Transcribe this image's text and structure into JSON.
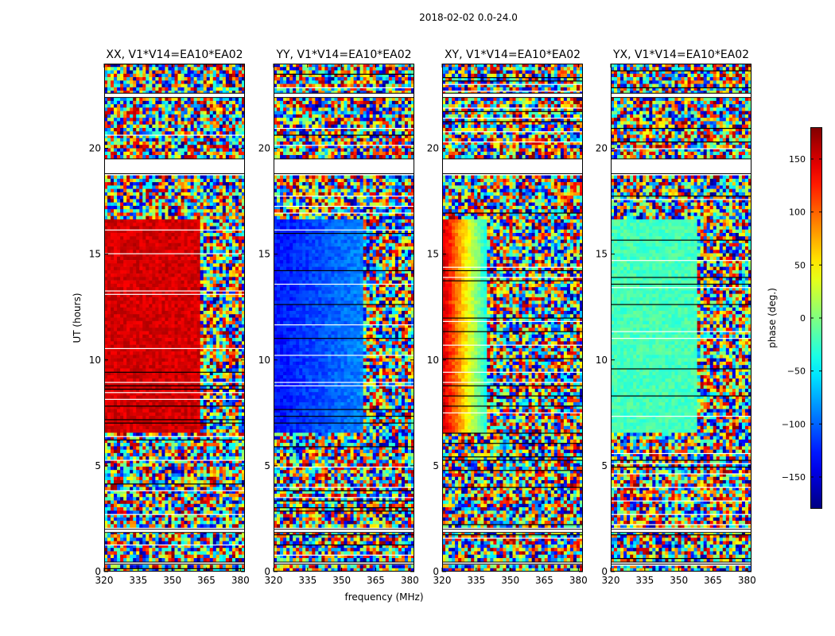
{
  "figure": {
    "suptitle": "2018-02-02 0.0-24.0",
    "xlabel": "frequency (MHz)",
    "ylabel": "UT (hours)"
  },
  "chart_data": {
    "type": "heatmap",
    "x_range": [
      320,
      382
    ],
    "y_range": [
      0,
      24
    ],
    "x_ticks": [
      320,
      335,
      350,
      365,
      380
    ],
    "x_tick_labels": [
      "320",
      "335",
      "350",
      "365",
      "380"
    ],
    "y_ticks": [
      0,
      5,
      10,
      15,
      20
    ],
    "y_tick_labels": [
      "0",
      "5",
      "10",
      "15",
      "20"
    ],
    "panels": [
      {
        "title": "XX, V1*V14=EA10*EA02",
        "pol": "XX",
        "coherent_phase_deg": 150,
        "coherent_until_mhz": 362
      },
      {
        "title": "YY, V1*V14=EA10*EA02",
        "pol": "YY",
        "coherent_phase_deg": -130,
        "coherent_until_mhz": 360
      },
      {
        "title": "XY, V1*V14=EA10*EA02",
        "pol": "XY",
        "coherent_phase_deg": 150,
        "coherent_until_mhz": 340
      },
      {
        "title": "YX, V1*V14=EA10*EA02",
        "pol": "YX",
        "coherent_phase_deg": -20,
        "coherent_until_mhz": 358
      }
    ],
    "flagged_ut_ranges": [
      [
        0.35,
        0.45
      ],
      [
        1.85,
        2.0
      ],
      [
        18.8,
        19.5
      ],
      [
        22.4,
        22.6
      ]
    ],
    "colorbar": {
      "label": "phase (deg.)",
      "range": [
        -180,
        180
      ],
      "ticks": [
        150,
        100,
        50,
        0,
        -50,
        -100,
        -150
      ],
      "tick_labels": [
        "150",
        "100",
        "50",
        "0",
        "−50",
        "−100",
        "−150"
      ],
      "colormap": "jet"
    }
  }
}
